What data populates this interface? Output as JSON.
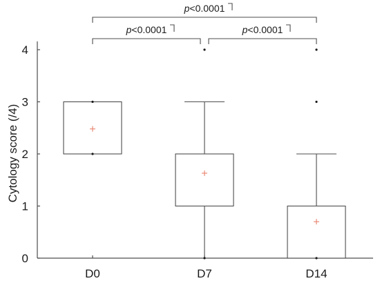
{
  "chart_data": {
    "type": "box",
    "title": "",
    "xlabel": "",
    "ylabel": "Cytology score (/4)",
    "ylim": [
      0,
      4
    ],
    "yticks": [
      0,
      1,
      2,
      3,
      4
    ],
    "categories": [
      "D0",
      "D7",
      "D14"
    ],
    "boxes": [
      {
        "category": "D0",
        "q1": 2,
        "median": 3,
        "q3": 3,
        "whisker_low": 2,
        "whisker_high": 3,
        "mean": 2.48,
        "outliers": [
          2,
          3
        ]
      },
      {
        "category": "D7",
        "q1": 1,
        "median": 2,
        "q3": 2,
        "whisker_low": 0,
        "whisker_high": 3,
        "mean": 1.63,
        "outliers": [
          0,
          4
        ]
      },
      {
        "category": "D14",
        "q1": 0,
        "median": 0,
        "q3": 1,
        "whisker_low": 0,
        "whisker_high": 2,
        "mean": 0.7,
        "outliers": [
          0,
          3,
          4
        ]
      }
    ],
    "comparisons": [
      {
        "from": "D0",
        "to": "D7",
        "p_symbol": "p",
        "p_value": "<0.0001"
      },
      {
        "from": "D7",
        "to": "D14",
        "p_symbol": "p",
        "p_value": "<0.0001"
      },
      {
        "from": "D0",
        "to": "D14",
        "p_symbol": "p",
        "p_value": "<0.0001"
      }
    ],
    "mean_marker_color": "#e8806a",
    "box_color": "#4d4d4d",
    "grid": false
  }
}
